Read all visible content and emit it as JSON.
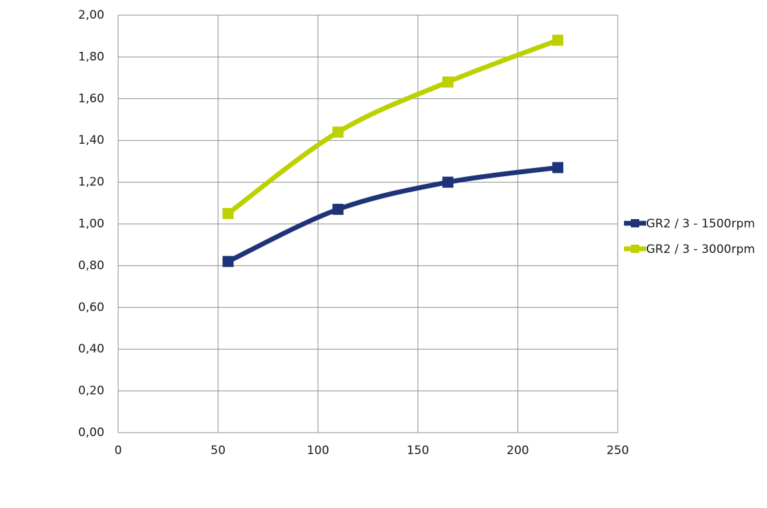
{
  "chart_data": {
    "type": "line",
    "x": [
      55,
      110,
      165,
      220
    ],
    "series": [
      {
        "name": "GR2 / 3 - 1500rpm",
        "color": "#1f3478",
        "values": [
          0.82,
          1.07,
          1.2,
          1.27
        ]
      },
      {
        "name": "GR2 / 3 - 3000rpm",
        "color": "#bdd000",
        "values": [
          1.05,
          1.44,
          1.68,
          1.88
        ]
      }
    ],
    "xlim": [
      0,
      250
    ],
    "xticks": [
      0,
      50,
      100,
      150,
      200,
      250
    ],
    "ylim": [
      0,
      2
    ],
    "yticks": [
      {
        "value": 0,
        "label": "0,00"
      },
      {
        "value": 0.2,
        "label": "0,20"
      },
      {
        "value": 0.4,
        "label": "0,40"
      },
      {
        "value": 0.6,
        "label": "0,60"
      },
      {
        "value": 0.8,
        "label": "0,80"
      },
      {
        "value": 1,
        "label": "1,00"
      },
      {
        "value": 1.2,
        "label": "1,20"
      },
      {
        "value": 1.4,
        "label": "1,40"
      },
      {
        "value": 1.6,
        "label": "1,60"
      },
      {
        "value": 1.8,
        "label": "1,80"
      },
      {
        "value": 2,
        "label": "2,00"
      }
    ],
    "grid": true,
    "smooth": true,
    "legend": "right"
  }
}
